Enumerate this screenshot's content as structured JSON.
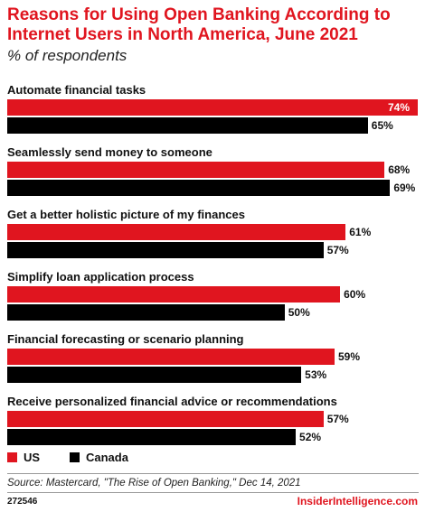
{
  "chart_data": {
    "type": "bar",
    "orientation": "horizontal",
    "title": "Reasons for Using Open Banking According to Internet Users in North America, June 2021",
    "subtitle": "% of respondents",
    "categories": [
      "Automate financial tasks",
      "Seamlessly send money to someone",
      "Get a better holistic picture of my finances",
      "Simplify loan application process",
      "Financial forecasting or scenario planning",
      "Receive personalized financial advice or recommendations"
    ],
    "series": [
      {
        "name": "US",
        "color": "#e0151f",
        "values": [
          74,
          68,
          61,
          60,
          59,
          57
        ]
      },
      {
        "name": "Canada",
        "color": "#000000",
        "values": [
          65,
          69,
          57,
          50,
          53,
          52
        ]
      }
    ],
    "value_suffix": "%",
    "xlim": [
      0,
      74
    ],
    "grid": false,
    "legend_position": "bottom-left"
  },
  "footer": {
    "source": "Source: Mastercard, \"The Rise of Open Banking,\" Dec 14, 2021",
    "chart_id": "272546",
    "brand": "InsiderIntelligence.com"
  }
}
